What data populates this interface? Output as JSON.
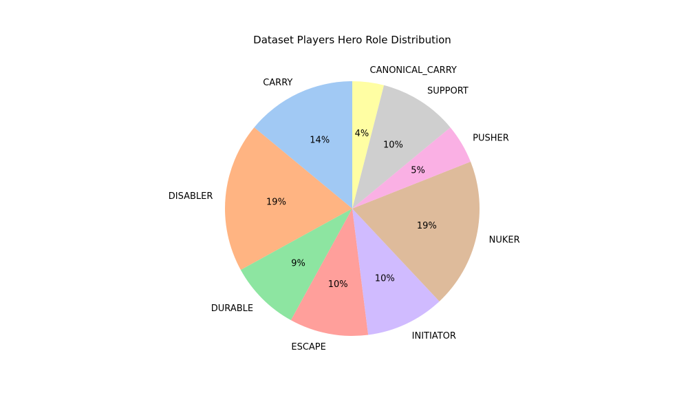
{
  "chart_data": {
    "type": "pie",
    "title": "Dataset Players Hero Role Distribution",
    "start_angle_deg": 90,
    "direction": "clockwise",
    "slices": [
      {
        "label": "CARRY",
        "value": 14,
        "pct_label": "14%",
        "color": "#a1c9f4"
      },
      {
        "label": "DISABLER",
        "value": 19,
        "pct_label": "19%",
        "color": "#ffb482"
      },
      {
        "label": "DURABLE",
        "value": 9,
        "pct_label": "9%",
        "color": "#8de5a1"
      },
      {
        "label": "ESCAPE",
        "value": 10,
        "pct_label": "10%",
        "color": "#ff9f9b"
      },
      {
        "label": "INITIATOR",
        "value": 10,
        "pct_label": "10%",
        "color": "#d0bbff"
      },
      {
        "label": "NUKER",
        "value": 19,
        "pct_label": "19%",
        "color": "#debb9b"
      },
      {
        "label": "PUSHER",
        "value": 5,
        "pct_label": "5%",
        "color": "#fab0e4"
      },
      {
        "label": "SUPPORT",
        "value": 10,
        "pct_label": "10%",
        "color": "#cfcfcf"
      },
      {
        "label": "CANONICAL_CARRY",
        "value": 4,
        "pct_label": "4%",
        "color": "#fffea3"
      }
    ]
  }
}
